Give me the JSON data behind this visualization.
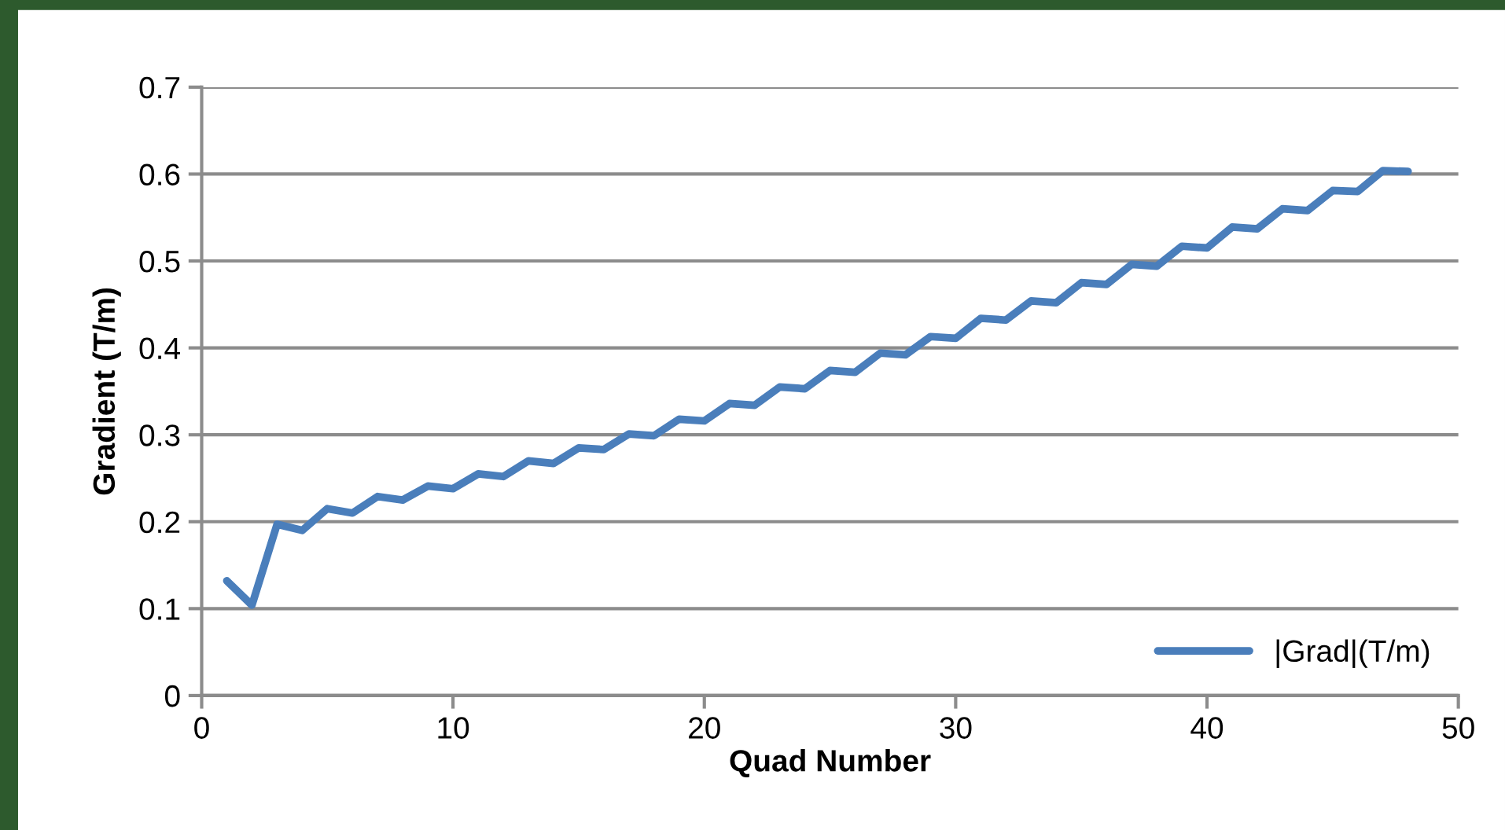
{
  "chart_data": {
    "type": "line",
    "xlabel": "Quad Number",
    "ylabel": "Gradient (T/m)",
    "x": [
      1,
      2,
      3,
      4,
      5,
      6,
      7,
      8,
      9,
      10,
      11,
      12,
      13,
      14,
      15,
      16,
      17,
      18,
      19,
      20,
      21,
      22,
      23,
      24,
      25,
      26,
      27,
      28,
      29,
      30,
      31,
      32,
      33,
      34,
      35,
      36,
      37,
      38,
      39,
      40,
      41,
      42,
      43,
      44,
      45,
      46,
      47,
      48
    ],
    "series": [
      {
        "name": "|Grad|(T/m)",
        "color": "#4a7ebb",
        "values": [
          0.132,
          0.104,
          0.197,
          0.19,
          0.215,
          0.21,
          0.229,
          0.225,
          0.241,
          0.238,
          0.255,
          0.252,
          0.27,
          0.267,
          0.285,
          0.283,
          0.301,
          0.299,
          0.318,
          0.316,
          0.336,
          0.334,
          0.355,
          0.353,
          0.374,
          0.372,
          0.394,
          0.392,
          0.413,
          0.411,
          0.434,
          0.432,
          0.454,
          0.452,
          0.475,
          0.473,
          0.496,
          0.494,
          0.517,
          0.515,
          0.539,
          0.537,
          0.56,
          0.558,
          0.581,
          0.58,
          0.604,
          0.603
        ]
      }
    ],
    "xlim": [
      0,
      50
    ],
    "xticks": [
      0,
      10,
      20,
      30,
      40,
      50
    ],
    "ylim": [
      0,
      0.7
    ],
    "yticks": [
      0,
      0.1,
      0.2,
      0.3,
      0.4,
      0.5,
      0.6,
      0.7
    ],
    "grid": "y",
    "legend": "bottom right",
    "marker": "none",
    "line_style": "solid"
  }
}
